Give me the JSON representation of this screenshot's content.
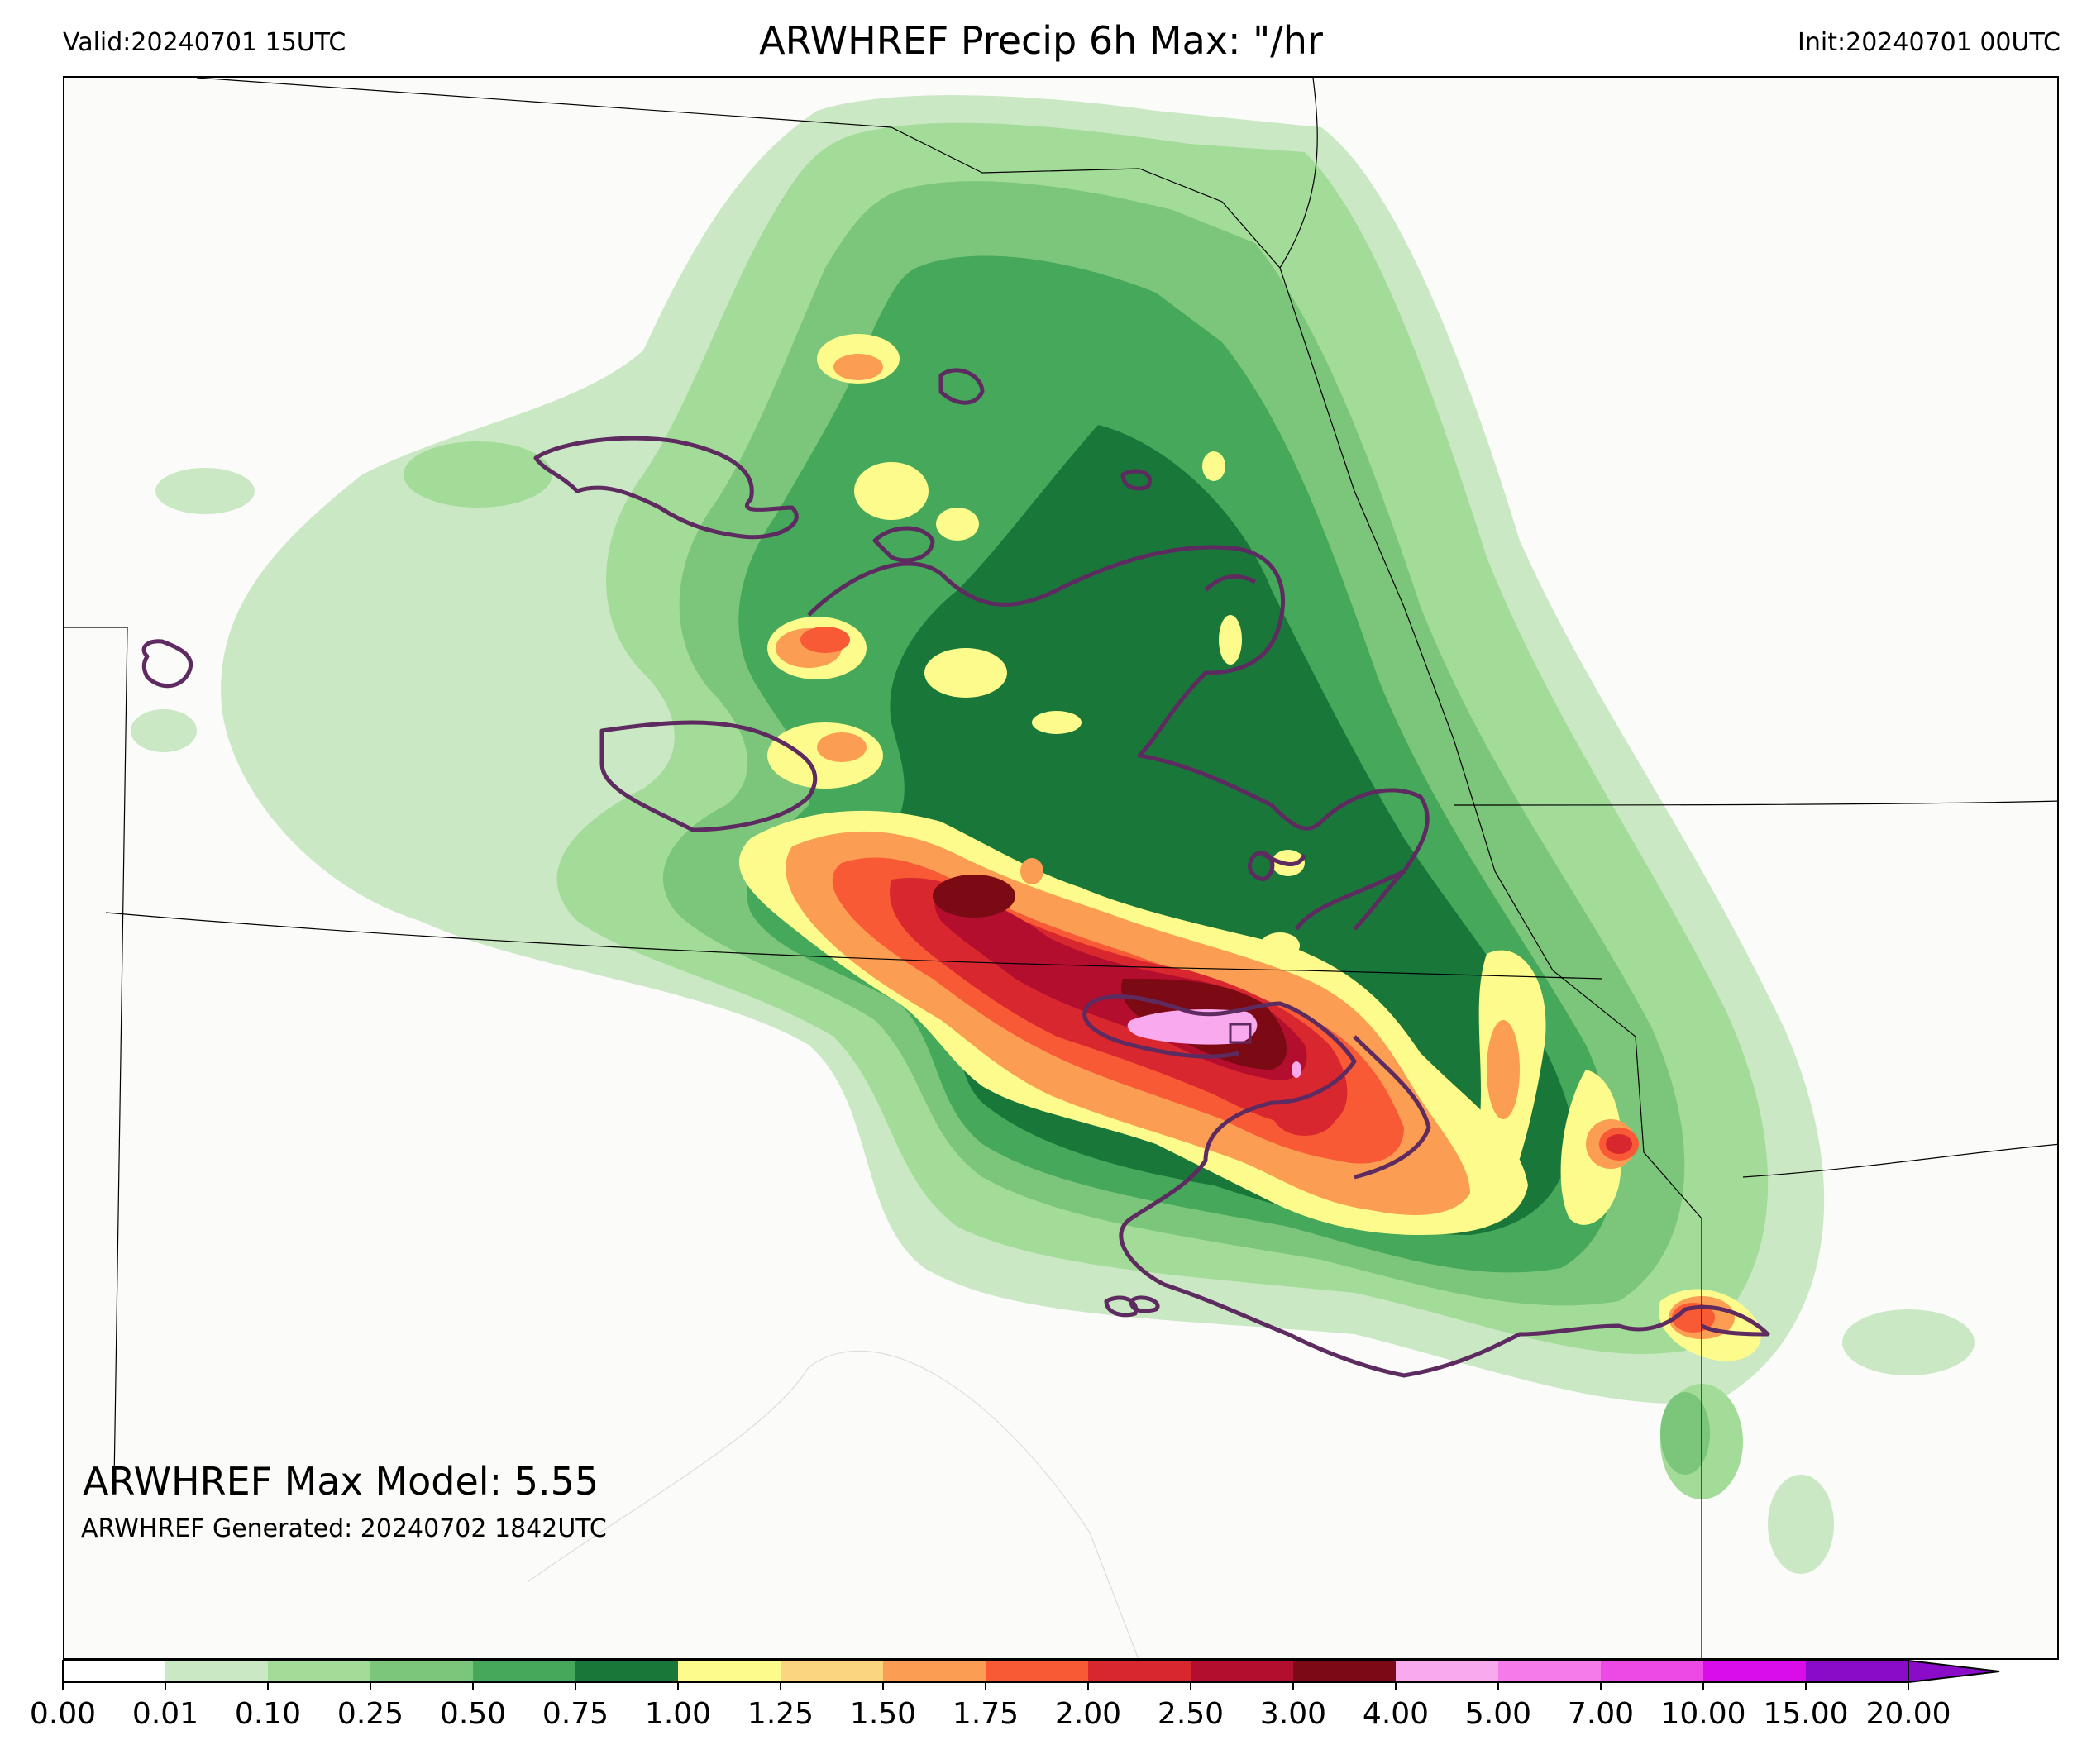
{
  "header": {
    "valid": "Valid:20240701 15UTC",
    "title": "ARWHREF Precip 6h Max: \"/hr",
    "init": "Init:20240701 00UTC"
  },
  "stats": {
    "max_model": "ARWHREF Max Model: 5.55",
    "generated": "ARWHREF Generated: 20240702 1842UTC"
  },
  "colorbar": {
    "ticks": [
      "0.00",
      "0.01",
      "0.10",
      "0.25",
      "0.50",
      "0.75",
      "1.00",
      "1.25",
      "1.50",
      "1.75",
      "2.00",
      "2.50",
      "3.00",
      "4.00",
      "5.00",
      "7.00",
      "10.00",
      "15.00",
      "20.00"
    ],
    "colors": [
      "#ffffff",
      "#c9e8c3",
      "#a2dc98",
      "#7cc67b",
      "#45a85a",
      "#19773a",
      "#fdfb8c",
      "#fcd57f",
      "#fb9d52",
      "#f85a36",
      "#d92730",
      "#b30e2e",
      "#7b0a15",
      "#f9a9ee",
      "#f47be9",
      "#ed4ae5",
      "#d90de9",
      "#8a0cc9"
    ],
    "extend": "max",
    "extend_color": "#8a0cc9"
  },
  "map_colors": {
    "state_lines": "#000000",
    "contour_line": "#5e2b61",
    "background": "#fbfbfa"
  }
}
